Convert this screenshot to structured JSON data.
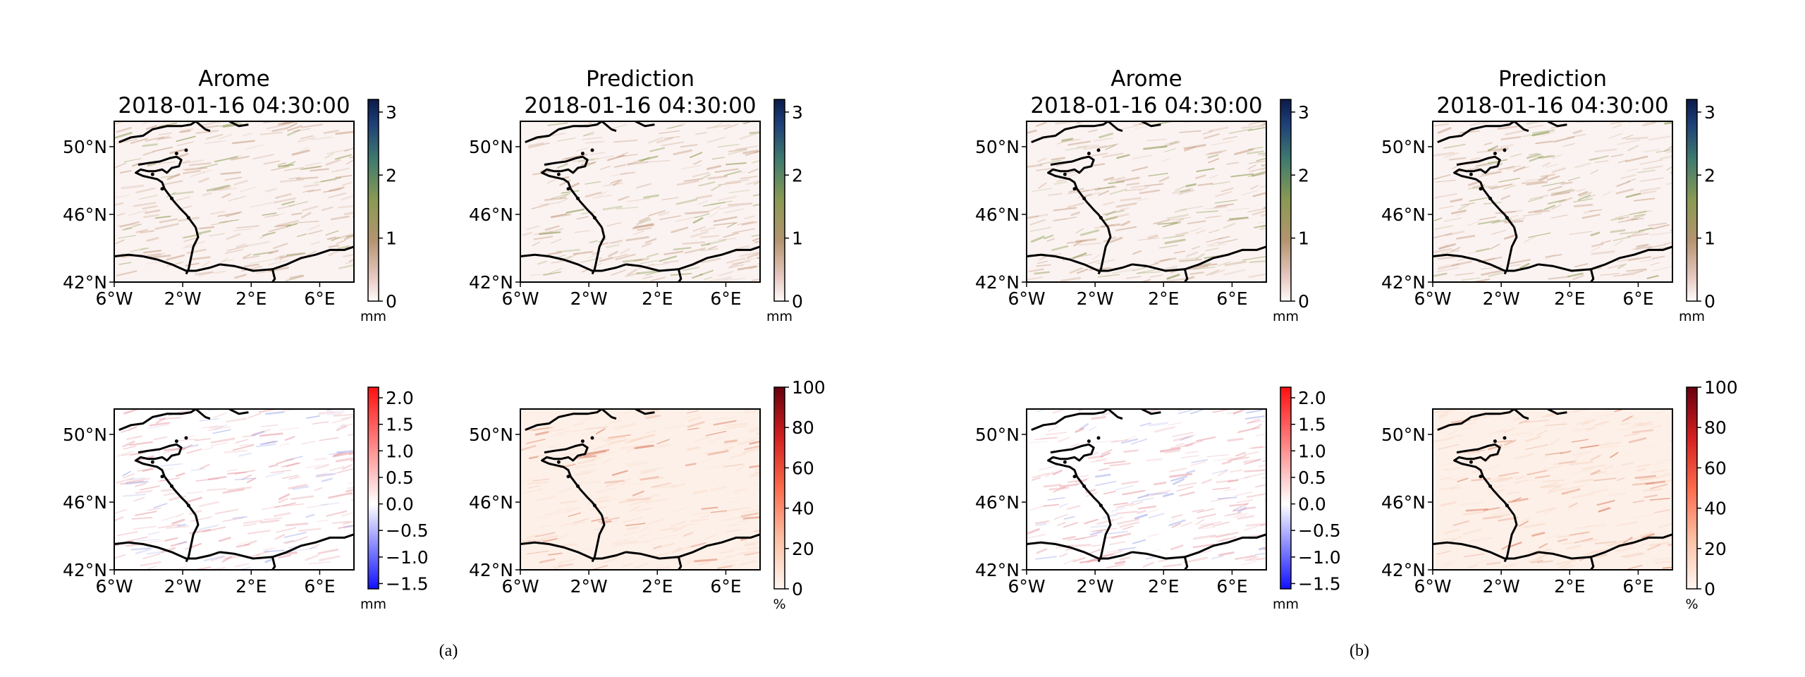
{
  "figure": {
    "panel_labels": [
      "(a)",
      "(b)"
    ]
  },
  "chart_data": [
    {
      "type": "heatmap",
      "group": "(a)",
      "name": "a-truth",
      "title": "Arome",
      "subtitle": "2018-01-16 04:30:00",
      "xlabel": "",
      "ylabel": "",
      "xticks": [
        "6°W",
        "2°W",
        "2°E",
        "6°E"
      ],
      "yticks": [
        "50°N",
        "46°N",
        "42°N"
      ],
      "xlim": [
        -6,
        8
      ],
      "ylim": [
        42,
        51.5
      ],
      "colorbar": {
        "label": "mm",
        "ticks": [
          "0",
          "1",
          "2",
          "3"
        ],
        "range": [
          0,
          3.2
        ],
        "colormap": "pink-olive-navy"
      },
      "field_colors": [
        "#fbf3f1",
        "#c9a48c",
        "#8a9a52"
      ]
    },
    {
      "type": "heatmap",
      "group": "(a)",
      "name": "a-prediction",
      "title": "Prediction",
      "subtitle": "2018-01-16 04:30:00",
      "xlabel": "",
      "ylabel": "",
      "xticks": [
        "6°W",
        "2°W",
        "2°E",
        "6°E"
      ],
      "yticks": [
        "50°N",
        "46°N",
        "42°N"
      ],
      "xlim": [
        -6,
        8
      ],
      "ylim": [
        42,
        51.5
      ],
      "colorbar": {
        "label": "mm",
        "ticks": [
          "0",
          "1",
          "2",
          "3"
        ],
        "range": [
          0,
          3.2
        ],
        "colormap": "pink-olive-navy"
      },
      "field_colors": [
        "#fbf3f1",
        "#c9a48c",
        "#8a9a52"
      ]
    },
    {
      "type": "heatmap",
      "group": "(a)",
      "name": "a-difference",
      "title": "",
      "subtitle": "",
      "xlabel": "",
      "ylabel": "",
      "xticks": [
        "6°W",
        "2°W",
        "2°E",
        "6°E"
      ],
      "yticks": [
        "50°N",
        "46°N",
        "42°N"
      ],
      "xlim": [
        -6,
        8
      ],
      "ylim": [
        42,
        51.5
      ],
      "colorbar": {
        "label": "mm",
        "ticks": [
          "2.0",
          "1.5",
          "1.0",
          "0.5",
          "0.0",
          "−0.5",
          "−1.0",
          "−1.5"
        ],
        "range": [
          -1.6,
          2.2
        ],
        "colormap": "bwr"
      },
      "field_colors": [
        "#ffffff",
        "#e8a0a8",
        "#a0a8e8"
      ]
    },
    {
      "type": "heatmap",
      "group": "(a)",
      "name": "a-percent",
      "title": "",
      "subtitle": "",
      "xlabel": "",
      "ylabel": "",
      "xticks": [
        "6°W",
        "2°W",
        "2°E",
        "6°E"
      ],
      "yticks": [
        "50°N",
        "46°N",
        "42°N"
      ],
      "xlim": [
        -6,
        8
      ],
      "ylim": [
        42,
        51.5
      ],
      "colorbar": {
        "label": "%",
        "ticks": [
          "100",
          "80",
          "60",
          "40",
          "20",
          "0"
        ],
        "range": [
          0,
          100
        ],
        "colormap": "reds"
      },
      "field_colors": [
        "#fdf0e8",
        "#f8d9c8",
        "#d9785a"
      ]
    },
    {
      "type": "heatmap",
      "group": "(b)",
      "name": "b-truth",
      "title": "Arome",
      "subtitle": "2018-01-16 04:30:00",
      "xlabel": "",
      "ylabel": "",
      "xticks": [
        "6°W",
        "2°W",
        "2°E",
        "6°E"
      ],
      "yticks": [
        "50°N",
        "46°N",
        "42°N"
      ],
      "xlim": [
        -6,
        8
      ],
      "ylim": [
        42,
        51.5
      ],
      "colorbar": {
        "label": "mm",
        "ticks": [
          "0",
          "1",
          "2",
          "3"
        ],
        "range": [
          0,
          3.2
        ],
        "colormap": "pink-olive-navy"
      },
      "field_colors": [
        "#fbf3f1",
        "#c9a48c",
        "#8a9a52"
      ]
    },
    {
      "type": "heatmap",
      "group": "(b)",
      "name": "b-prediction",
      "title": "Prediction",
      "subtitle": "2018-01-16 04:30:00",
      "xlabel": "",
      "ylabel": "",
      "xticks": [
        "6°W",
        "2°W",
        "2°E",
        "6°E"
      ],
      "yticks": [
        "50°N",
        "46°N",
        "42°N"
      ],
      "xlim": [
        -6,
        8
      ],
      "ylim": [
        42,
        51.5
      ],
      "colorbar": {
        "label": "mm",
        "ticks": [
          "0",
          "1",
          "2",
          "3"
        ],
        "range": [
          0,
          3.2
        ],
        "colormap": "pink-olive-navy"
      },
      "field_colors": [
        "#fbf3f1",
        "#c9a48c",
        "#8a9a52"
      ]
    },
    {
      "type": "heatmap",
      "group": "(b)",
      "name": "b-difference",
      "title": "",
      "subtitle": "",
      "xlabel": "",
      "ylabel": "",
      "xticks": [
        "6°W",
        "2°W",
        "2°E",
        "6°E"
      ],
      "yticks": [
        "50°N",
        "46°N",
        "42°N"
      ],
      "xlim": [
        -6,
        8
      ],
      "ylim": [
        42,
        51.5
      ],
      "colorbar": {
        "label": "mm",
        "ticks": [
          "2.0",
          "1.5",
          "1.0",
          "0.5",
          "0.0",
          "−0.5",
          "−1.0",
          "−1.5"
        ],
        "range": [
          -1.6,
          2.2
        ],
        "colormap": "bwr"
      },
      "field_colors": [
        "#ffffff",
        "#e8a0a8",
        "#a0a8e8"
      ]
    },
    {
      "type": "heatmap",
      "group": "(b)",
      "name": "b-percent",
      "title": "",
      "subtitle": "",
      "xlabel": "",
      "ylabel": "",
      "xticks": [
        "6°W",
        "2°W",
        "2°E",
        "6°E"
      ],
      "yticks": [
        "50°N",
        "46°N",
        "42°N"
      ],
      "xlim": [
        -6,
        8
      ],
      "ylim": [
        42,
        51.5
      ],
      "colorbar": {
        "label": "%",
        "ticks": [
          "100",
          "80",
          "60",
          "40",
          "20",
          "0"
        ],
        "range": [
          0,
          100
        ],
        "colormap": "reds"
      },
      "field_colors": [
        "#fdf0e8",
        "#f8d9c8",
        "#d9785a"
      ]
    }
  ]
}
